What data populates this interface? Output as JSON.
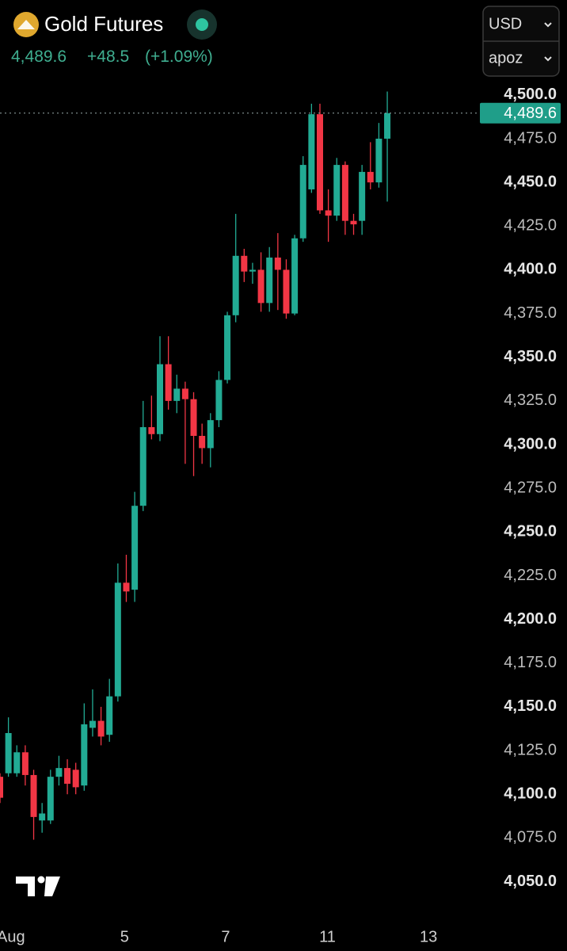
{
  "chart_data": {
    "type": "candlestick",
    "title": "Gold Futures",
    "last_price": {
      "value": 4489.6,
      "label": "4,489.6"
    },
    "change": "+48.5",
    "change_pct": "(+1.09%)",
    "currency": "USD",
    "unit": "apoz",
    "up_color": "#22ab94",
    "down_color": "#f23645",
    "x": [
      0,
      1,
      2,
      3,
      4,
      5,
      6,
      7,
      8,
      9,
      10,
      11,
      12,
      13,
      14,
      15,
      16,
      17,
      18,
      19,
      20,
      21,
      22,
      23,
      24,
      25,
      26,
      27,
      28,
      29,
      30,
      31,
      32,
      33,
      34,
      35,
      36,
      37,
      38,
      39,
      40,
      41,
      42,
      43,
      44,
      45,
      46
    ],
    "open": [
      4110,
      4112,
      4112,
      4124,
      4111,
      4085,
      4085,
      4110,
      4115,
      4114,
      4105,
      4138,
      4142,
      4134,
      4156,
      4221,
      4217,
      4265,
      4310,
      4306,
      4346,
      4325,
      4332,
      4326,
      4305,
      4298,
      4314,
      4337,
      4374,
      4408,
      4399,
      4400,
      4381,
      4407,
      4400,
      4375,
      4418,
      4446,
      4489,
      4434,
      4431,
      4460,
      4428,
      4428,
      4456,
      4450,
      4475
    ],
    "high": [
      4112,
      4144,
      4128,
      4128,
      4114,
      4095,
      4114,
      4122,
      4120,
      4118,
      4152,
      4160,
      4150,
      4166,
      4232,
      4237,
      4273,
      4325,
      4328,
      4362,
      4362,
      4340,
      4336,
      4330,
      4312,
      4318,
      4342,
      4376,
      4432,
      4412,
      4404,
      4410,
      4413,
      4421,
      4406,
      4420,
      4465,
      4495,
      4495,
      4446,
      4464,
      4462,
      4432,
      4460,
      4473,
      4484,
      4502
    ],
    "low": [
      4095,
      4110,
      4110,
      4105,
      4074,
      4078,
      4083,
      4105,
      4100,
      4100,
      4102,
      4133,
      4128,
      4130,
      4153,
      4210,
      4210,
      4262,
      4303,
      4302,
      4320,
      4318,
      4289,
      4282,
      4289,
      4287,
      4310,
      4335,
      4370,
      4393,
      4392,
      4376,
      4376,
      4377,
      4372,
      4374,
      4416,
      4444,
      4432,
      4416,
      4428,
      4420,
      4420,
      4420,
      4446,
      4447,
      4439
    ],
    "close": [
      4098,
      4135,
      4124,
      4111,
      4087,
      4089,
      4110,
      4115,
      4106,
      4104,
      4140,
      4142,
      4133,
      4156,
      4221,
      4216,
      4265,
      4310,
      4306,
      4346,
      4325,
      4332,
      4326,
      4305,
      4298,
      4314,
      4337,
      4374,
      4408,
      4399,
      4400,
      4381,
      4407,
      4400,
      4375,
      4418,
      4460,
      4489,
      4434,
      4431,
      4460,
      4428,
      4426,
      4456,
      4450,
      4475,
      4489.6
    ],
    "xlim": [
      0,
      57
    ],
    "xticks": [
      {
        "value": 1.3,
        "label": "Aug"
      },
      {
        "value": 14.8,
        "label": "5"
      },
      {
        "value": 26.8,
        "label": "7"
      },
      {
        "value": 38.9,
        "label": "11"
      },
      {
        "value": 50.9,
        "label": "13"
      }
    ],
    "ylim": [
      4033,
      4509
    ],
    "yticks": [
      {
        "value": 4500,
        "label": "4,500.0"
      },
      {
        "value": 4475,
        "label": "4,475.0"
      },
      {
        "value": 4450,
        "label": "4,450.0"
      },
      {
        "value": 4425,
        "label": "4,425.0"
      },
      {
        "value": 4400,
        "label": "4,400.0"
      },
      {
        "value": 4375,
        "label": "4,375.0"
      },
      {
        "value": 4350,
        "label": "4,350.0"
      },
      {
        "value": 4325,
        "label": "4,325.0"
      },
      {
        "value": 4300,
        "label": "4,300.0"
      },
      {
        "value": 4275,
        "label": "4,275.0"
      },
      {
        "value": 4250,
        "label": "4,250.0"
      },
      {
        "value": 4225,
        "label": "4,225.0"
      },
      {
        "value": 4200,
        "label": "4,200.0"
      },
      {
        "value": 4175,
        "label": "4,175.0"
      },
      {
        "value": 4150,
        "label": "4,150.0"
      },
      {
        "value": 4125,
        "label": "4,125.0"
      },
      {
        "value": 4100,
        "label": "4,100.0"
      },
      {
        "value": 4075,
        "label": "4,075.0"
      },
      {
        "value": 4050,
        "label": "4,050.0"
      }
    ],
    "grid": false
  }
}
